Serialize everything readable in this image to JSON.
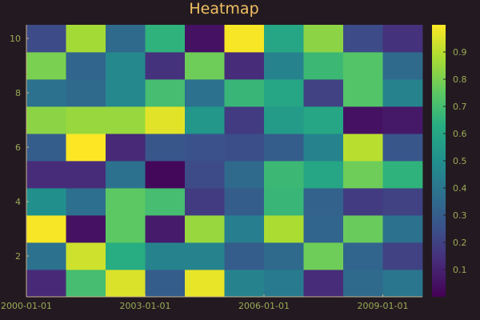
{
  "chart_data": {
    "type": "heatmap",
    "title": "Heatmap",
    "x": [
      "2000-01-01",
      "2001-01-01",
      "2002-01-01",
      "2003-01-01",
      "2004-01-01",
      "2005-01-01",
      "2006-01-01",
      "2007-01-01",
      "2008-01-01",
      "2009-01-01"
    ],
    "y": [
      1,
      2,
      3,
      4,
      5,
      6,
      7,
      8,
      9,
      10
    ],
    "xticks": [
      "2000-01-01",
      "2003-01-01",
      "2006-01-01",
      "2009-01-01"
    ],
    "yticks": [
      2,
      4,
      6,
      8,
      10
    ],
    "colorbar_ticks": [
      0.1,
      0.2,
      0.3,
      0.4,
      0.5,
      0.6,
      0.7,
      0.8,
      0.9
    ],
    "zlim": [
      0.0,
      1.0
    ],
    "colormap": "viridis",
    "values": [
      [
        0.12,
        0.7,
        0.95,
        0.3,
        0.97,
        0.45,
        0.42,
        0.13,
        0.35,
        0.4
      ],
      [
        0.38,
        0.93,
        0.63,
        0.45,
        0.45,
        0.3,
        0.35,
        0.78,
        0.33,
        0.2
      ],
      [
        0.99,
        0.05,
        0.75,
        0.08,
        0.85,
        0.43,
        0.88,
        0.33,
        0.77,
        0.38
      ],
      [
        0.5,
        0.37,
        0.75,
        0.7,
        0.18,
        0.3,
        0.67,
        0.32,
        0.18,
        0.2
      ],
      [
        0.13,
        0.13,
        0.38,
        0.02,
        0.23,
        0.35,
        0.68,
        0.6,
        0.78,
        0.65
      ],
      [
        0.3,
        1.0,
        0.12,
        0.27,
        0.25,
        0.24,
        0.3,
        0.45,
        0.9,
        0.27
      ],
      [
        0.83,
        0.85,
        0.85,
        0.96,
        0.53,
        0.18,
        0.55,
        0.6,
        0.05,
        0.07
      ],
      [
        0.38,
        0.35,
        0.47,
        0.7,
        0.38,
        0.67,
        0.6,
        0.2,
        0.73,
        0.45
      ],
      [
        0.8,
        0.33,
        0.47,
        0.15,
        0.78,
        0.13,
        0.45,
        0.68,
        0.73,
        0.35
      ],
      [
        0.23,
        0.87,
        0.35,
        0.65,
        0.05,
        0.99,
        0.6,
        0.83,
        0.23,
        0.15
      ]
    ],
    "grid": false,
    "colorbar": true
  },
  "colors": {
    "background": "#231a21",
    "title": "#f0c063",
    "tick_label": "#9aaa55",
    "axis": "#c9b28a"
  }
}
